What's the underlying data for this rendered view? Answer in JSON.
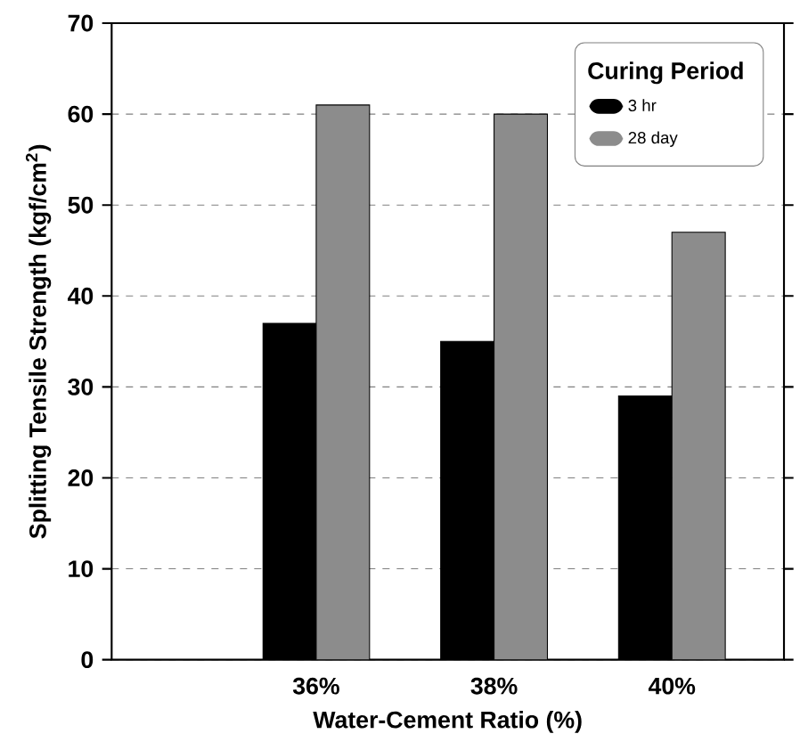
{
  "chart_data": {
    "type": "bar",
    "xlabel": "Water-Cement Ratio (%)",
    "ylabel": "Splitting Tensile Strength (kgf/cm$^{2}$)",
    "legend_title": "Curing Period",
    "categories": [
      "36%",
      "38%",
      "40%"
    ],
    "series": [
      {
        "name": "3 hr",
        "color": "#000000",
        "values": [
          37,
          35,
          29
        ]
      },
      {
        "name": "28 day",
        "color": "#8c8c8c",
        "values": [
          61,
          60,
          47
        ]
      }
    ],
    "ylim": [
      0,
      70
    ],
    "yticks": [
      0,
      10,
      20,
      30,
      40,
      50,
      60,
      70
    ],
    "grid": "y",
    "legend": "top right"
  }
}
